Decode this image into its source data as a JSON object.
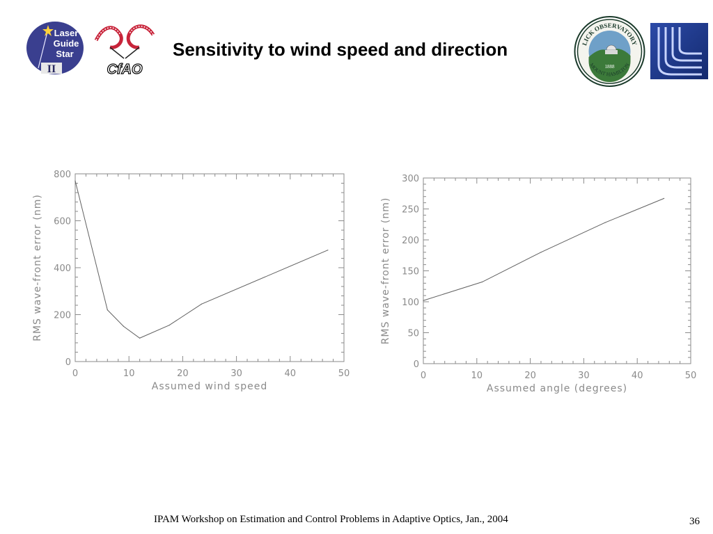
{
  "header": {
    "title": "Sensitivity to wind speed and direction",
    "logo_lgs": {
      "line1": "Laser",
      "line2": "Guide",
      "line3": "Star",
      "roman": "II"
    },
    "logo_cfao": {
      "text": "CfAO"
    },
    "logo_lick": {
      "top_text": "LICK OBSERVATORY",
      "bottom_text": "MOUNT HAMILTON",
      "year": "1888"
    }
  },
  "colors": {
    "axis": "#8a8a8a",
    "line": "#606060",
    "cu_blue": "#1f3a8f"
  },
  "chart_data": [
    {
      "type": "line",
      "title": "",
      "xlabel": "Assumed wind speed",
      "ylabel": "RMS wave-front error (nm)",
      "xlim": [
        0,
        50
      ],
      "ylim": [
        0,
        800
      ],
      "xticks": [
        0,
        10,
        20,
        30,
        40,
        50
      ],
      "yticks": [
        0,
        200,
        400,
        600,
        800
      ],
      "grid": false,
      "x": [
        0,
        6,
        9,
        12,
        17.5,
        23.5,
        47
      ],
      "y": [
        770,
        220,
        150,
        100,
        155,
        245,
        475
      ]
    },
    {
      "type": "line",
      "title": "",
      "xlabel": "Assumed angle (degrees)",
      "ylabel": "RMS wave-front error (nm)",
      "xlim": [
        0,
        50
      ],
      "ylim": [
        0,
        300
      ],
      "xticks": [
        0,
        10,
        20,
        30,
        40,
        50
      ],
      "yticks": [
        0,
        50,
        100,
        150,
        200,
        250,
        300
      ],
      "grid": false,
      "x": [
        0,
        11,
        22,
        34,
        45
      ],
      "y": [
        102,
        132,
        180,
        228,
        267
      ]
    }
  ],
  "footer": {
    "text": "IPAM Workshop on Estimation and Control Problems in Adaptive Optics, Jan., 2004",
    "page": "36"
  }
}
